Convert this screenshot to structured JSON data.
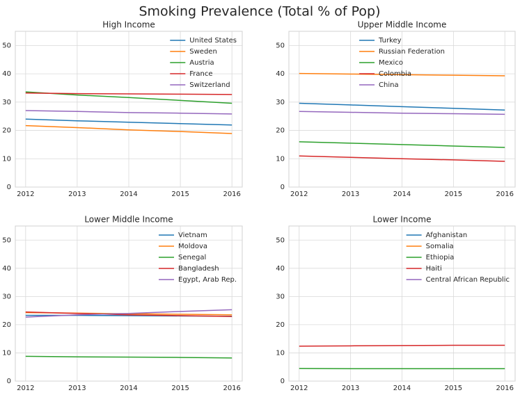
{
  "title": "Smoking Prevalence (Total % of Pop)",
  "chart_data": [
    {
      "type": "line",
      "title": "High Income",
      "x": [
        2012,
        2013,
        2014,
        2015,
        2016
      ],
      "xlim": [
        2011.8,
        2016.2
      ],
      "xticks": [
        2012,
        2013,
        2014,
        2015,
        2016
      ],
      "ylim": [
        0,
        55
      ],
      "yticks": [
        0,
        10,
        20,
        30,
        40,
        50
      ],
      "grid": true,
      "legend": "upper right",
      "series": [
        {
          "name": "United States",
          "color": "#1f77b4",
          "values": [
            24.0,
            23.4,
            22.9,
            22.4,
            21.9
          ]
        },
        {
          "name": "Sweden",
          "color": "#ff7f0e",
          "values": [
            21.7,
            21.0,
            20.2,
            19.6,
            18.9
          ]
        },
        {
          "name": "Austria",
          "color": "#2ca02c",
          "values": [
            33.6,
            32.5,
            31.6,
            30.6,
            29.6
          ]
        },
        {
          "name": "France",
          "color": "#d62728",
          "values": [
            33.2,
            33.0,
            32.9,
            32.8,
            32.7
          ]
        },
        {
          "name": "Switzerland",
          "color": "#9467bd",
          "values": [
            27.0,
            26.7,
            26.3,
            26.1,
            25.8
          ]
        }
      ]
    },
    {
      "type": "line",
      "title": "Upper Middle Income",
      "x": [
        2012,
        2013,
        2014,
        2015,
        2016
      ],
      "xlim": [
        2011.8,
        2016.2
      ],
      "xticks": [
        2012,
        2013,
        2014,
        2015,
        2016
      ],
      "ylim": [
        0,
        55
      ],
      "yticks": [
        0,
        10,
        20,
        30,
        40,
        50
      ],
      "grid": true,
      "legend": "upper center",
      "series": [
        {
          "name": "Turkey",
          "color": "#1f77b4",
          "values": [
            29.6,
            29.0,
            28.4,
            27.8,
            27.2
          ]
        },
        {
          "name": "Russian Federation",
          "color": "#ff7f0e",
          "values": [
            40.1,
            39.9,
            39.7,
            39.5,
            39.3
          ]
        },
        {
          "name": "Mexico",
          "color": "#2ca02c",
          "values": [
            16.0,
            15.5,
            15.0,
            14.5,
            14.0
          ]
        },
        {
          "name": "Colombia",
          "color": "#d62728",
          "values": [
            11.0,
            10.5,
            10.0,
            9.6,
            9.1
          ]
        },
        {
          "name": "China",
          "color": "#9467bd",
          "values": [
            26.7,
            26.4,
            26.1,
            25.9,
            25.7
          ]
        }
      ]
    },
    {
      "type": "line",
      "title": "Lower Middle Income",
      "x": [
        2012,
        2013,
        2014,
        2015,
        2016
      ],
      "xlim": [
        2011.8,
        2016.2
      ],
      "xticks": [
        2012,
        2013,
        2014,
        2015,
        2016
      ],
      "ylim": [
        0,
        55
      ],
      "yticks": [
        0,
        10,
        20,
        30,
        40,
        50
      ],
      "grid": true,
      "legend": "upper right",
      "series": [
        {
          "name": "Vietnam",
          "color": "#1f77b4",
          "values": [
            23.3,
            23.3,
            23.2,
            23.1,
            23.0
          ]
        },
        {
          "name": "Moldova",
          "color": "#ff7f0e",
          "values": [
            24.3,
            24.1,
            23.9,
            23.7,
            23.5
          ]
        },
        {
          "name": "Senegal",
          "color": "#2ca02c",
          "values": [
            8.8,
            8.6,
            8.5,
            8.4,
            8.2
          ]
        },
        {
          "name": "Bangladesh",
          "color": "#d62728",
          "values": [
            24.5,
            24.0,
            23.5,
            23.2,
            22.9
          ]
        },
        {
          "name": "Egypt, Arab Rep.",
          "color": "#9467bd",
          "values": [
            22.7,
            23.5,
            24.0,
            24.7,
            25.3
          ]
        }
      ]
    },
    {
      "type": "line",
      "title": "Lower Income",
      "x": [
        2012,
        2013,
        2014,
        2015,
        2016
      ],
      "xlim": [
        2011.8,
        2016.2
      ],
      "xticks": [
        2012,
        2013,
        2014,
        2015,
        2016
      ],
      "ylim": [
        0,
        55
      ],
      "yticks": [
        0,
        10,
        20,
        30,
        40,
        50
      ],
      "grid": true,
      "legend": "upper right",
      "series": [
        {
          "name": "Afghanistan",
          "color": "#1f77b4",
          "values": [
            null,
            null,
            null,
            null,
            null
          ]
        },
        {
          "name": "Somalia",
          "color": "#ff7f0e",
          "values": [
            null,
            null,
            null,
            null,
            null
          ]
        },
        {
          "name": "Ethiopia",
          "color": "#2ca02c",
          "values": [
            4.5,
            4.4,
            4.4,
            4.4,
            4.4
          ]
        },
        {
          "name": "Haiti",
          "color": "#d62728",
          "values": [
            12.4,
            12.5,
            12.6,
            12.7,
            12.7
          ]
        },
        {
          "name": "Central African Republic",
          "color": "#9467bd",
          "values": [
            null,
            null,
            null,
            null,
            null
          ]
        }
      ]
    }
  ]
}
